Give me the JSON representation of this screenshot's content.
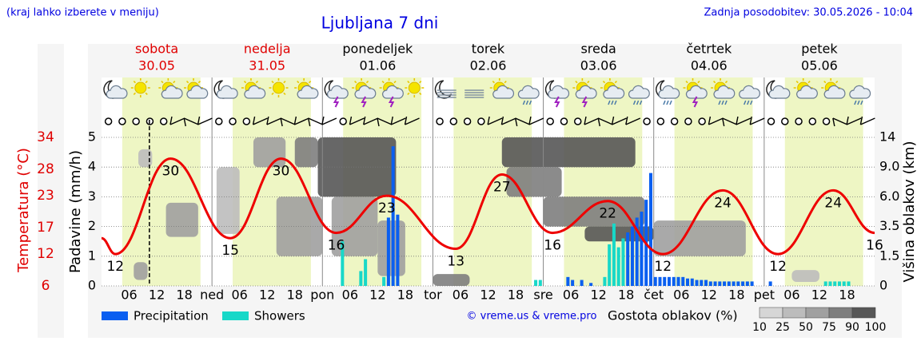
{
  "chart_data": {
    "type": "meteogram",
    "title": "Ljubljana 7 dni",
    "note": "(kraj lahko izberete v meniju)",
    "updated": "Zadnja posodobitev: 30.05.2026 - 10:04",
    "credit": "© vreme.us & vreme.pro",
    "days": [
      {
        "name": "sobota",
        "date": "30.05",
        "color": "#e00000"
      },
      {
        "name": "nedelja",
        "date": "31.05",
        "color": "#e00000"
      },
      {
        "name": "ponedeljek",
        "date": "01.06",
        "color": "#000000"
      },
      {
        "name": "torek",
        "date": "02.06",
        "color": "#000000"
      },
      {
        "name": "sreda",
        "date": "03.06",
        "color": "#000000"
      },
      {
        "name": "četrtek",
        "date": "04.06",
        "color": "#000000"
      },
      {
        "name": "petek",
        "date": "05.06",
        "color": "#000000"
      }
    ],
    "xlim": [
      0,
      168
    ],
    "xticks": [
      {
        "value": 6,
        "label": "06"
      },
      {
        "value": 12,
        "label": "12"
      },
      {
        "value": 18,
        "label": "18"
      },
      {
        "value": 24,
        "label": "ned"
      },
      {
        "value": 30,
        "label": "06"
      },
      {
        "value": 36,
        "label": "12"
      },
      {
        "value": 42,
        "label": "18"
      },
      {
        "value": 48,
        "label": "pon"
      },
      {
        "value": 54,
        "label": "06"
      },
      {
        "value": 60,
        "label": "12"
      },
      {
        "value": 66,
        "label": "18"
      },
      {
        "value": 72,
        "label": "tor"
      },
      {
        "value": 78,
        "label": "06"
      },
      {
        "value": 84,
        "label": "12"
      },
      {
        "value": 90,
        "label": "18"
      },
      {
        "value": 96,
        "label": "sre"
      },
      {
        "value": 102,
        "label": "06"
      },
      {
        "value": 108,
        "label": "12"
      },
      {
        "value": 114,
        "label": "18"
      },
      {
        "value": 120,
        "label": "čet"
      },
      {
        "value": 126,
        "label": "06"
      },
      {
        "value": 132,
        "label": "12"
      },
      {
        "value": 138,
        "label": "18"
      },
      {
        "value": 144,
        "label": "pet"
      },
      {
        "value": 150,
        "label": "06"
      },
      {
        "value": 156,
        "label": "12"
      },
      {
        "value": 162,
        "label": "18"
      }
    ],
    "daylight": [
      4.5,
      21.5
    ],
    "now": 10.4,
    "ylabel": "Padavine (mm/h)",
    "ylim": [
      0,
      5
    ],
    "yticks": [
      0,
      1,
      2,
      3,
      4,
      5
    ],
    "grid": true,
    "y2label": "Višina oblakov (km)",
    "y2lim": [
      0,
      14
    ],
    "y2ticks": [
      0,
      1.5,
      3.5,
      {
        "value": 6,
        "label": "6.0"
      },
      {
        "value": 9,
        "label": "9.0"
      },
      14
    ],
    "temp_label": "Temperatura (°C)",
    "temp_color": "#e00000",
    "temp_lim": [
      6,
      34
    ],
    "temp_ticks": [
      6,
      12,
      17,
      23,
      28,
      34
    ],
    "temperature": {
      "color": "#ee0000",
      "x": [
        0,
        3,
        15,
        28,
        39,
        51,
        62,
        77,
        87,
        98,
        110,
        122,
        135,
        147,
        159,
        168
      ],
      "values": [
        15,
        12,
        30,
        15,
        30,
        16,
        23,
        13,
        27,
        16,
        22,
        12,
        24,
        12,
        24,
        16
      ],
      "value_labels": [
        null,
        "12",
        "30",
        "15",
        "30",
        "16",
        "23",
        "13",
        "27",
        "16",
        "22",
        "12",
        "24",
        "12",
        "24",
        "16"
      ]
    },
    "series": [
      {
        "name": "Precipitation",
        "color": "#0a5ff0",
        "x": [
          62,
          63,
          64,
          101,
          102,
          104,
          106,
          114,
          115,
          116,
          117,
          118,
          119,
          120,
          121,
          122,
          123,
          124,
          125,
          126,
          127,
          128,
          129,
          130,
          131,
          132,
          133,
          134,
          135,
          136,
          137,
          138,
          139,
          140,
          141,
          145
        ],
        "values": [
          2.3,
          4.7,
          2.4,
          0.3,
          0.2,
          0.2,
          0.1,
          1.8,
          2.0,
          2.3,
          2.5,
          2.9,
          3.8,
          0.3,
          0.3,
          0.3,
          0.3,
          0.3,
          0.3,
          0.3,
          0.25,
          0.25,
          0.2,
          0.2,
          0.2,
          0.15,
          0.15,
          0.15,
          0.15,
          0.15,
          0.15,
          0.15,
          0.15,
          0.15,
          0.15,
          0.15
        ]
      },
      {
        "name": "Showers",
        "color": "#18d8c8",
        "x": [
          52,
          56,
          57,
          61,
          94,
          95,
          109,
          110,
          111,
          112,
          113,
          157,
          158,
          159,
          160,
          161,
          162
        ],
        "values": [
          1.5,
          0.5,
          0.9,
          0.3,
          0.2,
          0.2,
          0.3,
          1.4,
          2.1,
          1.3,
          1.6,
          0.15,
          0.15,
          0.15,
          0.15,
          0.15,
          0.15
        ]
      }
    ],
    "cloud_legend": {
      "title": "Gostota oblakov (%)",
      "ticks": [
        10,
        25,
        50,
        75,
        90,
        100
      ],
      "colors": [
        "#d6d6d6",
        "#bcbcbc",
        "#a0a0a0",
        "#7e7e7e",
        "#575757"
      ]
    },
    "clouds": [
      {
        "x": [
          7,
          10
        ],
        "height": [
          0.3,
          1.2
        ],
        "density": 50
      },
      {
        "x": [
          8,
          11
        ],
        "height": [
          9,
          12
        ],
        "density": 25
      },
      {
        "x": [
          14,
          21
        ],
        "height": [
          2.8,
          5.5
        ],
        "density": 50
      },
      {
        "x": [
          25,
          30
        ],
        "height": [
          3,
          9
        ],
        "density": 25
      },
      {
        "x": [
          33,
          40
        ],
        "height": [
          9,
          14
        ],
        "density": 50
      },
      {
        "x": [
          38,
          48
        ],
        "height": [
          1.5,
          6
        ],
        "density": 50
      },
      {
        "x": [
          42,
          47
        ],
        "height": [
          9,
          14
        ],
        "density": 75
      },
      {
        "x": [
          47,
          64
        ],
        "height": [
          6,
          14
        ],
        "density": 90
      },
      {
        "x": [
          50,
          60
        ],
        "height": [
          1.5,
          6
        ],
        "density": 50
      },
      {
        "x": [
          60,
          66
        ],
        "height": [
          0.5,
          4
        ],
        "density": 50
      },
      {
        "x": [
          72,
          80
        ],
        "height": [
          0,
          0.6
        ],
        "density": 75
      },
      {
        "x": [
          87,
          116
        ],
        "height": [
          9,
          14
        ],
        "density": 90
      },
      {
        "x": [
          88,
          100
        ],
        "height": [
          6,
          9
        ],
        "density": 75
      },
      {
        "x": [
          96,
          118
        ],
        "height": [
          3.5,
          6
        ],
        "density": 75
      },
      {
        "x": [
          105,
          120
        ],
        "height": [
          2.5,
          3.5
        ],
        "density": 90
      },
      {
        "x": [
          120,
          140
        ],
        "height": [
          1.5,
          4
        ],
        "density": 50
      },
      {
        "x": [
          150,
          156
        ],
        "height": [
          0.2,
          0.8
        ],
        "density": 25
      }
    ]
  }
}
